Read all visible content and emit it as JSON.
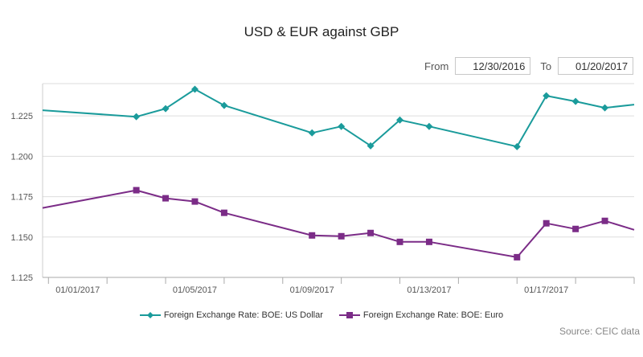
{
  "page": {
    "title": "USD & EUR against GBP",
    "range_from_label": "From",
    "range_to_label": "To",
    "range_from_value": "12/30/2016",
    "range_to_value": "01/20/2017",
    "source": "Source: CEIC data"
  },
  "chart_data": {
    "type": "line",
    "title": "USD & EUR against GBP",
    "xlabel": "",
    "ylabel": "",
    "x_tick_labels": [
      "01/01/2017",
      "01/05/2017",
      "01/09/2017",
      "01/13/2017",
      "01/17/2017"
    ],
    "x_tick_days": [
      0,
      4,
      8,
      12,
      16
    ],
    "x_range_days": [
      -1.2,
      19
    ],
    "ylim": [
      1.125,
      1.245
    ],
    "y_ticks": [
      1.125,
      1.15,
      1.175,
      1.2,
      1.225
    ],
    "y_tick_labels": [
      "1.125",
      "1.150",
      "1.175",
      "1.200",
      "1.225"
    ],
    "grid": true,
    "legend_position": "bottom-center",
    "x_days": [
      -1.2,
      2,
      3,
      4,
      5,
      8,
      9,
      10,
      11,
      12,
      15,
      16,
      17,
      18,
      19
    ],
    "series": [
      {
        "name": "Foreign Exchange Rate: BOE: US Dollar",
        "color": "#1a9b9b",
        "marker": "diamond",
        "values": [
          1.2285,
          1.2245,
          1.2295,
          1.2415,
          1.2315,
          1.2145,
          1.2185,
          1.2065,
          1.2225,
          1.2185,
          1.206,
          1.2375,
          1.234,
          1.23,
          1.232
        ]
      },
      {
        "name": "Foreign Exchange Rate: BOE: Euro",
        "color": "#7b2c87",
        "marker": "square",
        "values": [
          1.168,
          1.179,
          1.174,
          1.172,
          1.165,
          1.151,
          1.1505,
          1.1525,
          1.147,
          1.147,
          1.1375,
          1.1585,
          1.155,
          1.16,
          1.1545
        ]
      }
    ]
  }
}
